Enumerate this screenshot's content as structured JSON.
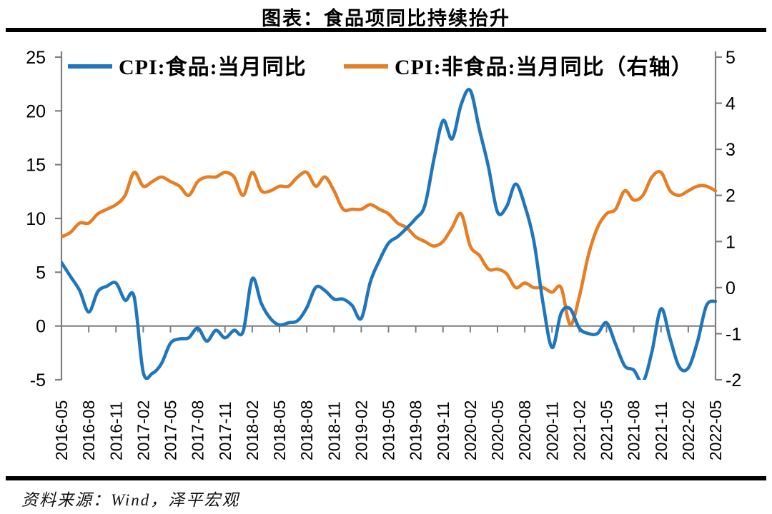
{
  "page": {
    "title": "图表：食品项同比持续抬升",
    "source_note": "资料来源：Wind，泽平宏观"
  },
  "chart_data": {
    "type": "line",
    "title": "图表：食品项同比持续抬升",
    "legend_position": "top",
    "grid": false,
    "axis_color": "#7f7f7f",
    "text_color": "#000000",
    "months": [
      "2016-05",
      "2016-06",
      "2016-07",
      "2016-08",
      "2016-09",
      "2016-10",
      "2016-11",
      "2016-12",
      "2017-01",
      "2017-02",
      "2017-03",
      "2017-04",
      "2017-05",
      "2017-06",
      "2017-07",
      "2017-08",
      "2017-09",
      "2017-10",
      "2017-11",
      "2017-12",
      "2018-01",
      "2018-02",
      "2018-03",
      "2018-04",
      "2018-05",
      "2018-06",
      "2018-07",
      "2018-08",
      "2018-09",
      "2018-10",
      "2018-11",
      "2018-12",
      "2019-01",
      "2019-02",
      "2019-03",
      "2019-04",
      "2019-05",
      "2019-06",
      "2019-07",
      "2019-08",
      "2019-09",
      "2019-10",
      "2019-11",
      "2019-12",
      "2020-01",
      "2020-02",
      "2020-03",
      "2020-04",
      "2020-05",
      "2020-06",
      "2020-07",
      "2020-08",
      "2020-09",
      "2020-10",
      "2020-11",
      "2020-12",
      "2021-01",
      "2021-02",
      "2021-03",
      "2021-04",
      "2021-05",
      "2021-06",
      "2021-07",
      "2021-08",
      "2021-09",
      "2021-10",
      "2021-11",
      "2021-12",
      "2022-01",
      "2022-02",
      "2022-03",
      "2022-04",
      "2022-05"
    ],
    "x_tick_labels": [
      "2016-05",
      "2016-08",
      "2016-11",
      "2017-02",
      "2017-05",
      "2017-08",
      "2017-11",
      "2018-02",
      "2018-05",
      "2018-08",
      "2018-11",
      "2019-02",
      "2019-05",
      "2019-08",
      "2019-11",
      "2020-02",
      "2020-05",
      "2020-08",
      "2020-11",
      "2021-02",
      "2021-05",
      "2021-08",
      "2021-11",
      "2022-02",
      "2022-05"
    ],
    "left_axis": {
      "min": -5,
      "max": 25,
      "ticks": [
        25,
        20,
        15,
        10,
        5,
        0,
        -5
      ]
    },
    "right_axis": {
      "min": -2,
      "max": 5,
      "ticks": [
        5,
        4,
        3,
        2,
        1,
        0,
        -1,
        -2
      ]
    },
    "series": [
      {
        "name": "CPI:食品:当月同比",
        "axis": "left",
        "color": "#1f76bc",
        "values": [
          5.9,
          4.6,
          3.3,
          1.3,
          3.2,
          3.7,
          4.0,
          2.4,
          2.7,
          -4.3,
          -4.4,
          -3.5,
          -1.6,
          -1.2,
          -1.1,
          -0.2,
          -1.4,
          -0.4,
          -1.1,
          -0.4,
          -0.5,
          4.4,
          2.1,
          0.7,
          0.1,
          0.3,
          0.5,
          1.7,
          3.6,
          3.3,
          2.5,
          2.5,
          1.9,
          0.7,
          4.1,
          6.1,
          7.7,
          8.3,
          9.1,
          10.0,
          11.2,
          15.5,
          19.1,
          17.4,
          20.6,
          21.9,
          18.3,
          14.8,
          10.6,
          11.1,
          13.2,
          11.2,
          7.9,
          2.2,
          -2.0,
          1.2,
          1.6,
          -0.2,
          -0.7,
          -0.7,
          0.3,
          -1.7,
          -3.7,
          -4.1,
          -5.2,
          -2.4,
          1.6,
          -1.2,
          -3.8,
          -3.9,
          -1.5,
          1.9,
          2.3
        ]
      },
      {
        "name": "CPI:非食品:当月同比（右轴）",
        "axis": "right",
        "color": "#e77e23",
        "values": [
          1.1,
          1.2,
          1.4,
          1.4,
          1.6,
          1.7,
          1.8,
          2.0,
          2.5,
          2.2,
          2.3,
          2.4,
          2.3,
          2.2,
          2.0,
          2.3,
          2.4,
          2.4,
          2.5,
          2.4,
          2.0,
          2.5,
          2.1,
          2.1,
          2.2,
          2.2,
          2.4,
          2.5,
          2.2,
          2.4,
          2.1,
          1.7,
          1.7,
          1.7,
          1.8,
          1.7,
          1.6,
          1.4,
          1.3,
          1.1,
          1.0,
          0.9,
          1.0,
          1.3,
          1.6,
          0.9,
          0.7,
          0.4,
          0.4,
          0.3,
          0.0,
          0.1,
          0.0,
          0.0,
          -0.1,
          0.0,
          -0.8,
          -0.2,
          0.7,
          1.3,
          1.6,
          1.7,
          2.1,
          1.9,
          2.0,
          2.4,
          2.5,
          2.1,
          2.0,
          2.1,
          2.2,
          2.2,
          2.1
        ]
      }
    ]
  }
}
